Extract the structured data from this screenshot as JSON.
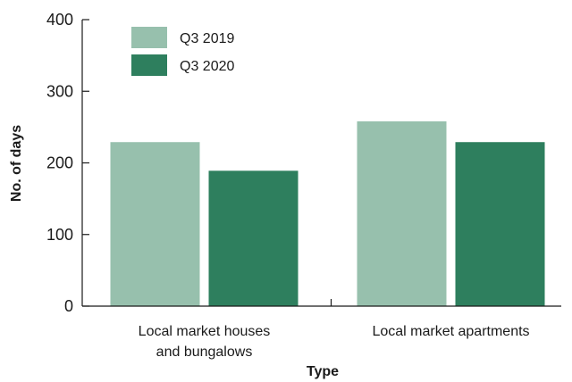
{
  "chart_data": {
    "type": "bar",
    "title": "",
    "xlabel": "Type",
    "ylabel": "No. of days",
    "ylim": [
      0,
      400
    ],
    "yticks": [
      0,
      100,
      200,
      300,
      400
    ],
    "categories": [
      [
        "Local market houses",
        "and bungalows"
      ],
      [
        "Local market apartments"
      ]
    ],
    "series": [
      {
        "name": "Q3 2019",
        "color": "#97c0ad",
        "values": [
          229,
          258
        ]
      },
      {
        "name": "Q3 2020",
        "color": "#2e7f5e",
        "values": [
          189,
          229
        ]
      }
    ],
    "legend_position": "top-left",
    "grid": false
  }
}
